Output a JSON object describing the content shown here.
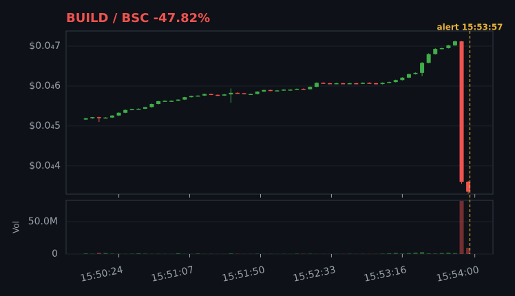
{
  "chart_data": {
    "type": "candlestick",
    "title": "BUILD / BSC  -47.82%",
    "x": [
      "15:50:04",
      "15:50:08",
      "15:50:12",
      "15:50:16",
      "15:50:20",
      "15:50:24",
      "15:50:28",
      "15:50:32",
      "15:50:36",
      "15:50:40",
      "15:50:44",
      "15:50:48",
      "15:50:52",
      "15:50:56",
      "15:51:00",
      "15:51:04",
      "15:51:08",
      "15:51:12",
      "15:51:16",
      "15:51:20",
      "15:51:24",
      "15:51:28",
      "15:51:32",
      "15:51:36",
      "15:51:40",
      "15:51:44",
      "15:51:48",
      "15:51:52",
      "15:51:56",
      "15:52:00",
      "15:52:04",
      "15:52:08",
      "15:52:12",
      "15:52:16",
      "15:52:20",
      "15:52:24",
      "15:52:28",
      "15:52:32",
      "15:52:36",
      "15:52:40",
      "15:52:44",
      "15:52:48",
      "15:52:52",
      "15:52:56",
      "15:53:00",
      "15:53:04",
      "15:53:08",
      "15:53:12",
      "15:53:16",
      "15:53:20",
      "15:53:24",
      "15:53:28",
      "15:53:32",
      "15:53:36",
      "15:53:40",
      "15:53:44",
      "15:53:48",
      "15:53:52",
      "15:53:56"
    ],
    "open": [
      5.16e-05,
      5.19e-05,
      5.22e-05,
      5.2e-05,
      5.21e-05,
      5.26e-05,
      5.33e-05,
      5.4e-05,
      5.42e-05,
      5.43e-05,
      5.47e-05,
      5.55e-05,
      5.62e-05,
      5.63e-05,
      5.63e-05,
      5.66e-05,
      5.72e-05,
      5.75e-05,
      5.76e-05,
      5.8e-05,
      5.78e-05,
      5.76e-05,
      5.79e-05,
      5.83e-05,
      5.82e-05,
      5.8e-05,
      5.8e-05,
      5.86e-05,
      5.9e-05,
      5.88e-05,
      5.89e-05,
      5.91e-05,
      5.91e-05,
      5.93e-05,
      5.92e-05,
      5.98e-05,
      6.08e-05,
      6.07e-05,
      6.06e-05,
      6.07e-05,
      6.06e-05,
      6.07e-05,
      6.06e-05,
      6.08e-05,
      6.07e-05,
      6.05e-05,
      6.08e-05,
      6.1e-05,
      6.15e-05,
      6.21e-05,
      6.3e-05,
      6.33e-05,
      6.58e-05,
      6.8e-05,
      6.93e-05,
      6.95e-05,
      7.02e-05,
      7.12e-05,
      3.6e-05
    ],
    "high": [
      5.2e-05,
      5.22e-05,
      5.23e-05,
      5.22e-05,
      5.27e-05,
      5.34e-05,
      5.41e-05,
      5.43e-05,
      5.44e-05,
      5.48e-05,
      5.56e-05,
      5.63e-05,
      5.64e-05,
      5.64e-05,
      5.67e-05,
      5.73e-05,
      5.76e-05,
      5.77e-05,
      5.81e-05,
      5.81e-05,
      5.79e-05,
      5.8e-05,
      5.94e-05,
      5.84e-05,
      5.83e-05,
      5.81e-05,
      5.87e-05,
      5.91e-05,
      5.91e-05,
      5.9e-05,
      5.92e-05,
      5.92e-05,
      5.94e-05,
      5.94e-05,
      5.99e-05,
      6.09e-05,
      6.09e-05,
      6.08e-05,
      6.08e-05,
      6.08e-05,
      6.08e-05,
      6.08e-05,
      6.09e-05,
      6.09e-05,
      6.08e-05,
      6.09e-05,
      6.11e-05,
      6.16e-05,
      6.22e-05,
      6.31e-05,
      6.34e-05,
      6.6e-05,
      6.82e-05,
      6.95e-05,
      6.96e-05,
      7.03e-05,
      7.14e-05,
      7.13e-05,
      3.62e-05
    ],
    "low": [
      5.15e-05,
      5.18e-05,
      5.1e-05,
      5.19e-05,
      5.2e-05,
      5.25e-05,
      5.32e-05,
      5.4e-05,
      5.41e-05,
      5.42e-05,
      5.46e-05,
      5.54e-05,
      5.61e-05,
      5.62e-05,
      5.62e-05,
      5.65e-05,
      5.71e-05,
      5.74e-05,
      5.75e-05,
      5.77e-05,
      5.75e-05,
      5.75e-05,
      5.58e-05,
      5.81e-05,
      5.79e-05,
      5.79e-05,
      5.79e-05,
      5.85e-05,
      5.87e-05,
      5.87e-05,
      5.88e-05,
      5.9e-05,
      5.9e-05,
      5.91e-05,
      5.91e-05,
      5.97e-05,
      6.06e-05,
      6.05e-05,
      6.05e-05,
      6.05e-05,
      6.05e-05,
      6.05e-05,
      6.05e-05,
      6.06e-05,
      6.04e-05,
      6.04e-05,
      6.07e-05,
      6.09e-05,
      6.14e-05,
      6.2e-05,
      6.29e-05,
      6.25e-05,
      6.57e-05,
      6.79e-05,
      6.92e-05,
      6.94e-05,
      7.01e-05,
      3.55e-05,
      3.3e-05
    ],
    "close": [
      5.19e-05,
      5.22e-05,
      5.2e-05,
      5.21e-05,
      5.26e-05,
      5.33e-05,
      5.4e-05,
      5.42e-05,
      5.43e-05,
      5.47e-05,
      5.55e-05,
      5.62e-05,
      5.63e-05,
      5.63e-05,
      5.66e-05,
      5.72e-05,
      5.75e-05,
      5.76e-05,
      5.8e-05,
      5.78e-05,
      5.76e-05,
      5.79e-05,
      5.83e-05,
      5.82e-05,
      5.8e-05,
      5.8e-05,
      5.86e-05,
      5.9e-05,
      5.88e-05,
      5.89e-05,
      5.91e-05,
      5.91e-05,
      5.93e-05,
      5.92e-05,
      5.98e-05,
      6.08e-05,
      6.07e-05,
      6.06e-05,
      6.07e-05,
      6.06e-05,
      6.07e-05,
      6.06e-05,
      6.08e-05,
      6.07e-05,
      6.05e-05,
      6.08e-05,
      6.1e-05,
      6.15e-05,
      6.21e-05,
      6.3e-05,
      6.33e-05,
      6.58e-05,
      6.8e-05,
      6.93e-05,
      6.95e-05,
      7.02e-05,
      7.12e-05,
      3.6e-05,
      3.35e-05
    ],
    "volume": [
      1000000.0,
      500000.0,
      1800000.0,
      1600000.0,
      600000.0,
      400000.0,
      300000.0,
      500000.0,
      1100000.0,
      600000.0,
      300000.0,
      400000.0,
      300000.0,
      200000.0,
      1300000.0,
      300000.0,
      200000.0,
      800000.0,
      200000.0,
      300000.0,
      200000.0,
      200000.0,
      1000000.0,
      400000.0,
      200000.0,
      300000.0,
      600000.0,
      200000.0,
      300000.0,
      200000.0,
      300000.0,
      200000.0,
      600000.0,
      400000.0,
      500000.0,
      200000.0,
      200000.0,
      200000.0,
      300000.0,
      200000.0,
      400000.0,
      200000.0,
      300000.0,
      200000.0,
      200000.0,
      600000.0,
      1200000.0,
      1800000.0,
      800000.0,
      1500000.0,
      2300000.0,
      3100000.0,
      1000000.0,
      800000.0,
      1600000.0,
      2200000.0,
      1500000.0,
      82000000.0,
      9600000.0
    ],
    "up_color": "#3fae4a",
    "down_color": "#ef5350",
    "xlim": [
      "15:49:52",
      "15:54:11"
    ],
    "xticks": [
      "15:50:24",
      "15:51:07",
      "15:51:50",
      "15:52:33",
      "15:53:16",
      "15:54:00"
    ],
    "ylim": [
      3.29e-05,
      7.38e-05
    ],
    "yticks": [
      {
        "value": 4e-05,
        "label": "$0.0₄4"
      },
      {
        "value": 5e-05,
        "label": "$0.0₄5"
      },
      {
        "value": 6e-05,
        "label": "$0.0₄6"
      },
      {
        "value": 7e-05,
        "label": "$0.0₄7"
      }
    ],
    "volume_label": "Vol",
    "volume_ylim": [
      0,
      83000000
    ],
    "volume_yticks": [
      0,
      {
        "value": 50000000,
        "label": "50.0M"
      }
    ],
    "grid": true,
    "annotation": {
      "text": "alert 15:53:57",
      "x": "15:53:57",
      "color": "#e8b23a"
    }
  }
}
